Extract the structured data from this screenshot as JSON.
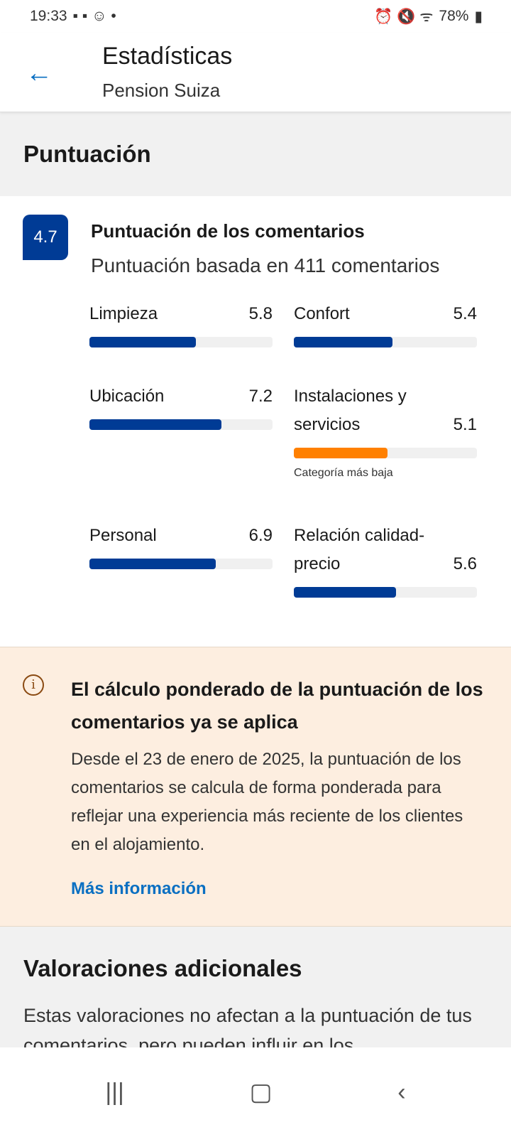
{
  "status_bar": {
    "time": "19:33",
    "battery": "78%"
  },
  "header": {
    "title": "Estadísticas",
    "subtitle": "Pension Suiza"
  },
  "section_title": "Puntuación",
  "score": {
    "value": "4.7",
    "heading": "Puntuación de los comentarios",
    "subheading": "Puntuación basada en 411 comentarios"
  },
  "categories": [
    {
      "label": "Limpieza",
      "value": "5.8",
      "fraction": 0.58,
      "color": "#003b95"
    },
    {
      "label": "Confort",
      "value": "5.4",
      "fraction": 0.54,
      "color": "#003b95"
    },
    {
      "label": "Ubicación",
      "value": "7.2",
      "fraction": 0.72,
      "color": "#003b95"
    },
    {
      "label": "Instalaciones y servicios",
      "value": "5.1",
      "fraction": 0.51,
      "color": "#ff8000",
      "note": "Categoría más baja"
    },
    {
      "label": "Personal",
      "value": "6.9",
      "fraction": 0.69,
      "color": "#003b95"
    },
    {
      "label": "Relación calidad-precio",
      "value": "5.6",
      "fraction": 0.56,
      "color": "#003b95"
    }
  ],
  "info": {
    "heading": "El cálculo ponderado de la puntuación de los comentarios ya se aplica",
    "body": "Desde el 23 de enero de 2025, la puntuación de los comentarios se calcula de forma ponderada para reflejar una experiencia más reciente de los clientes en el alojamiento.",
    "link": "Más información"
  },
  "additional": {
    "title": "Valoraciones adicionales",
    "text": "Estas valoraciones no afectan a la puntuación de tus comentarios, pero pueden influir en los"
  }
}
